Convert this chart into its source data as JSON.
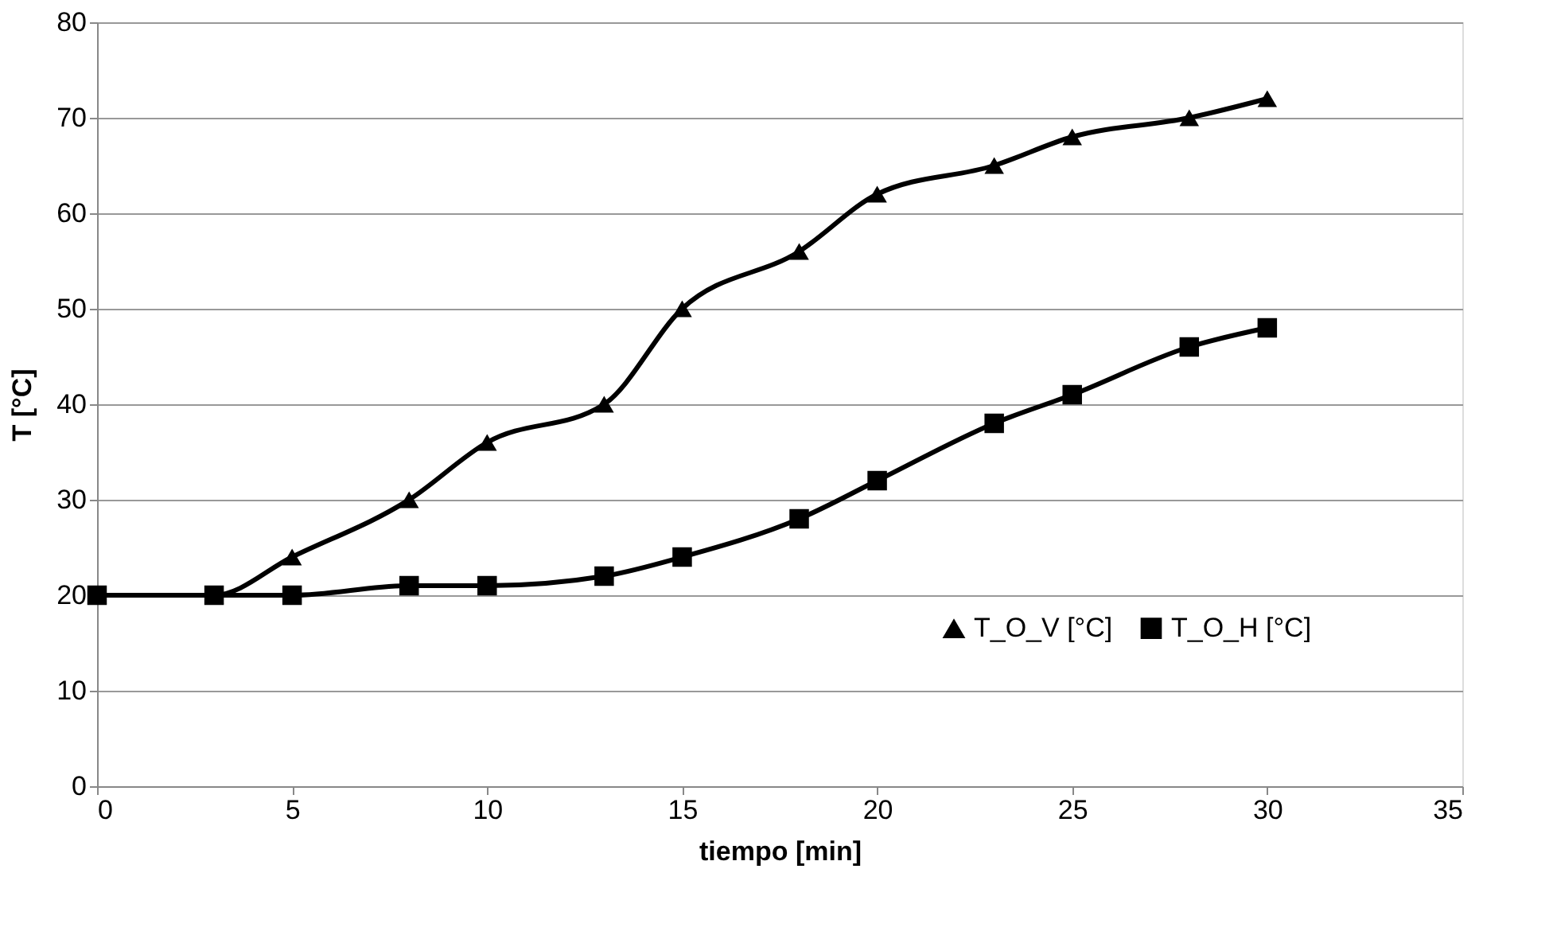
{
  "chart_data": {
    "type": "line",
    "xlabel": "tiempo [min]",
    "ylabel": "T [°C]",
    "x": [
      0,
      3,
      5,
      8,
      10,
      13,
      15,
      18,
      20,
      23,
      25,
      28,
      30
    ],
    "series": [
      {
        "name": "T_O_V  [°C]",
        "color": "#000000",
        "marker": "triangle",
        "values": [
          20,
          20,
          24,
          30,
          36,
          40,
          50,
          56,
          62,
          65,
          68,
          70,
          72
        ]
      },
      {
        "name": "T_O_H  [°C]",
        "color": "#000000",
        "marker": "square",
        "values": [
          20,
          20,
          20,
          21,
          21,
          22,
          24,
          28,
          32,
          38,
          41,
          46,
          48
        ]
      }
    ],
    "xlim": [
      0,
      35
    ],
    "xticks": [
      0,
      5,
      10,
      15,
      20,
      25,
      30,
      35
    ],
    "ylim": [
      0,
      80
    ],
    "yticks": [
      0,
      10,
      20,
      30,
      40,
      50,
      60,
      70,
      80
    ],
    "grid": "y",
    "legend": "bottom right",
    "line_style": "solid"
  }
}
